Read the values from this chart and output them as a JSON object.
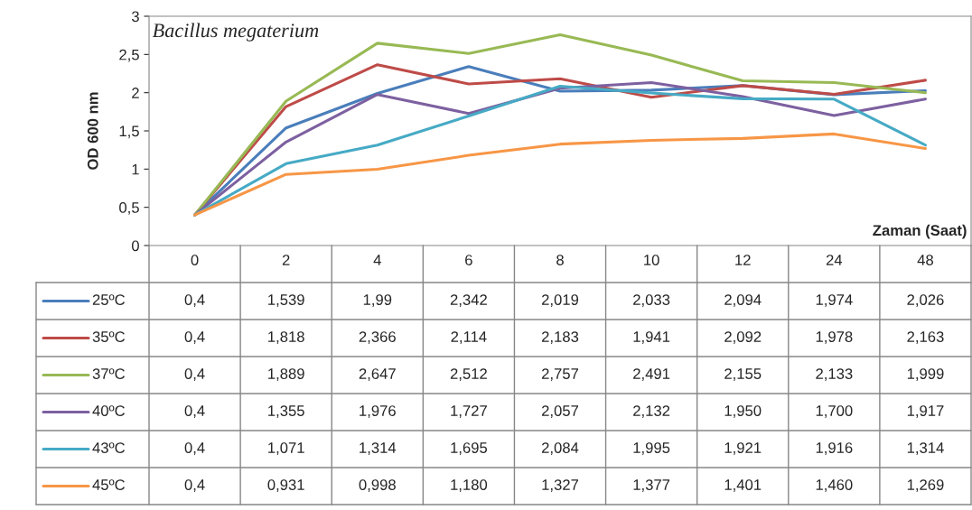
{
  "chart_data": {
    "type": "line",
    "title": "Bacillus megaterium",
    "xlabel": "Zaman (Saat)",
    "ylabel": "OD 600 nm",
    "categories": [
      "0",
      "2",
      "4",
      "6",
      "8",
      "10",
      "12",
      "24",
      "48"
    ],
    "ylim": [
      0,
      3
    ],
    "yticks": [
      {
        "value": 0,
        "label": "0"
      },
      {
        "value": 0.5,
        "label": "0,5"
      },
      {
        "value": 1,
        "label": "1"
      },
      {
        "value": 1.5,
        "label": "1,5"
      },
      {
        "value": 2,
        "label": "2"
      },
      {
        "value": 2.5,
        "label": "2,5"
      },
      {
        "value": 3,
        "label": "3"
      }
    ],
    "legend": "left",
    "marker": "none",
    "line_style": "solid",
    "series": [
      {
        "name": "25ºC",
        "color": "#4a7ebb",
        "values": [
          0.4,
          1.539,
          1.99,
          2.342,
          2.019,
          2.033,
          2.094,
          1.974,
          2.026
        ],
        "value_labels": [
          "0,4",
          "1,539",
          "1,99",
          "2,342",
          "2,019",
          "2,033",
          "2,094",
          "1,974",
          "2,026"
        ]
      },
      {
        "name": "35ºC",
        "color": "#be4b48",
        "values": [
          0.4,
          1.818,
          2.366,
          2.114,
          2.183,
          1.941,
          2.092,
          1.978,
          2.163
        ],
        "value_labels": [
          "0,4",
          "1,818",
          "2,366",
          "2,114",
          "2,183",
          "1,941",
          "2,092",
          "1,978",
          "2,163"
        ]
      },
      {
        "name": "37ºC",
        "color": "#98b954",
        "values": [
          0.4,
          1.889,
          2.647,
          2.512,
          2.757,
          2.491,
          2.155,
          2.133,
          1.999
        ],
        "value_labels": [
          "0,4",
          "1,889",
          "2,647",
          "2,512",
          "2,757",
          "2,491",
          "2,155",
          "2,133",
          "1,999"
        ]
      },
      {
        "name": "40ºC",
        "color": "#7d60a0",
        "values": [
          0.4,
          1.355,
          1.976,
          1.727,
          2.057,
          2.132,
          1.95,
          1.7,
          1.917
        ],
        "value_labels": [
          "0,4",
          "1,355",
          "1,976",
          "1,727",
          "2,057",
          "2,132",
          "1,950",
          "1,700",
          "1,917"
        ]
      },
      {
        "name": "43ºC",
        "color": "#46aac5",
        "values": [
          0.4,
          1.071,
          1.314,
          1.695,
          2.084,
          1.995,
          1.921,
          1.916,
          1.314
        ],
        "value_labels": [
          "0,4",
          "1,071",
          "1,314",
          "1,695",
          "2,084",
          "1,995",
          "1,921",
          "1,916",
          "1,314"
        ]
      },
      {
        "name": "45ºC",
        "color": "#f79646",
        "values": [
          0.4,
          0.931,
          0.998,
          1.18,
          1.327,
          1.377,
          1.401,
          1.46,
          1.269
        ],
        "value_labels": [
          "0,4",
          "0,931",
          "0,998",
          "1,180",
          "1,327",
          "1,377",
          "1,401",
          "1,460",
          "1,269"
        ]
      }
    ]
  }
}
